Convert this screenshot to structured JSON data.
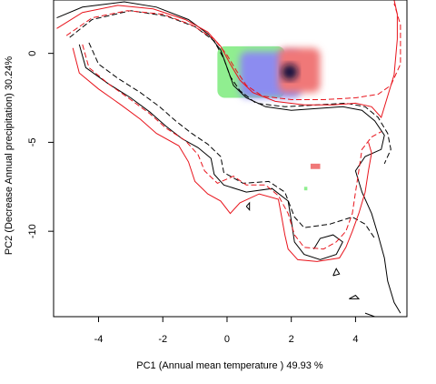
{
  "chart_data": {
    "type": "contour",
    "xlabel": "PC1 (Annual mean temperature ) 49.93 %",
    "ylabel": "PC2 (Decrease Annual precipitation) 30.24%",
    "xlim": [
      -5.4,
      5.6
    ],
    "ylim": [
      -14.8,
      3.0
    ],
    "xticks": [
      -4,
      -2,
      0,
      2,
      4
    ],
    "yticks": [
      0,
      -5,
      -10
    ],
    "xtick_labels": [
      "-4",
      "-2",
      "0",
      "2",
      "4"
    ],
    "ytick_labels": [
      "0",
      "-5",
      "-10"
    ],
    "colors": {
      "species_a": "#000000",
      "species_b": "#e8141c",
      "overlap_dark": "#0a0a3c",
      "only_a": "#8c8cf0",
      "only_b": "#f07878",
      "unfilling": "#90ee90"
    },
    "series": [
      {
        "name": "",
        "color": "#000000",
        "style": "solid",
        "points": [
          [
            -5.3,
            2.0
          ],
          [
            -4.5,
            2.6
          ],
          [
            -3.2,
            2.9
          ],
          [
            -2.2,
            2.6
          ],
          [
            -1.2,
            1.9
          ],
          [
            -0.6,
            1.1
          ],
          [
            -0.2,
            0.2
          ],
          [
            0.0,
            -0.8
          ],
          [
            0.2,
            -1.8
          ],
          [
            0.6,
            -2.5
          ],
          [
            1.2,
            -3.0
          ],
          [
            2.0,
            -3.2
          ],
          [
            2.8,
            -3.1
          ],
          [
            3.6,
            -3.0
          ],
          [
            4.2,
            -3.2
          ],
          [
            4.6,
            -3.8
          ],
          [
            4.9,
            -4.6
          ],
          [
            4.8,
            -5.4
          ],
          [
            4.3,
            -5.8
          ],
          [
            4.0,
            -6.6
          ],
          [
            4.2,
            -7.8
          ],
          [
            4.5,
            -9.0
          ],
          [
            4.7,
            -10.2
          ],
          [
            4.9,
            -11.5
          ],
          [
            5.0,
            -12.8
          ],
          [
            5.2,
            -14.0
          ],
          [
            5.4,
            -14.6
          ]
        ]
      },
      {
        "name": "",
        "color": "#000000",
        "style": "solid",
        "points": [
          [
            -4.6,
            0.5
          ],
          [
            -4.4,
            -0.8
          ],
          [
            -3.7,
            -1.7
          ],
          [
            -3.0,
            -2.5
          ],
          [
            -2.4,
            -3.3
          ],
          [
            -1.9,
            -4.1
          ],
          [
            -1.4,
            -4.8
          ],
          [
            -0.9,
            -5.3
          ],
          [
            -0.5,
            -5.9
          ],
          [
            -0.4,
            -6.8
          ],
          [
            -0.1,
            -7.4
          ],
          [
            0.6,
            -7.8
          ],
          [
            1.4,
            -7.6
          ],
          [
            1.9,
            -8.3
          ],
          [
            2.0,
            -9.4
          ],
          [
            2.1,
            -10.6
          ],
          [
            2.4,
            -11.3
          ],
          [
            2.9,
            -11.6
          ],
          [
            3.4,
            -11.3
          ],
          [
            3.6,
            -10.6
          ],
          [
            3.3,
            -10.2
          ],
          [
            2.9,
            -10.4
          ],
          [
            2.7,
            -11.0
          ]
        ]
      },
      {
        "name": "",
        "color": "#000000",
        "style": "dashed",
        "points": [
          [
            -4.9,
            0.9
          ],
          [
            -4.2,
            1.9
          ],
          [
            -3.0,
            2.4
          ],
          [
            -1.9,
            2.1
          ],
          [
            -1.0,
            1.5
          ],
          [
            -0.4,
            0.7
          ],
          [
            -0.1,
            -0.3
          ],
          [
            0.1,
            -1.3
          ],
          [
            0.4,
            -2.1
          ],
          [
            0.9,
            -2.8
          ],
          [
            1.8,
            -3.0
          ],
          [
            2.8,
            -2.9
          ],
          [
            3.7,
            -2.8
          ],
          [
            4.3,
            -3.0
          ],
          [
            4.7,
            -3.6
          ],
          [
            5.0,
            -4.5
          ],
          [
            5.1,
            -5.4
          ],
          [
            4.9,
            -6.2
          ]
        ]
      },
      {
        "name": "",
        "color": "#000000",
        "style": "dashed",
        "points": [
          [
            -4.3,
            0.6
          ],
          [
            -4.0,
            -0.6
          ],
          [
            -3.4,
            -1.4
          ],
          [
            -2.7,
            -2.2
          ],
          [
            -2.1,
            -3.0
          ],
          [
            -1.6,
            -3.8
          ],
          [
            -1.1,
            -4.5
          ],
          [
            -0.6,
            -5.1
          ],
          [
            -0.2,
            -5.8
          ],
          [
            -0.1,
            -6.7
          ],
          [
            0.5,
            -7.3
          ],
          [
            1.3,
            -7.2
          ],
          [
            1.8,
            -7.8
          ],
          [
            2.1,
            -9.2
          ],
          [
            2.4,
            -9.8
          ],
          [
            3.2,
            -9.6
          ],
          [
            3.9,
            -9.2
          ],
          [
            4.3,
            -9.6
          ],
          [
            4.6,
            -10.4
          ]
        ]
      },
      {
        "name": "",
        "color": "#e8141c",
        "style": "solid",
        "points": [
          [
            -5.3,
            1.4
          ],
          [
            -4.5,
            2.3
          ],
          [
            -3.4,
            2.7
          ],
          [
            -2.3,
            2.5
          ],
          [
            -1.3,
            1.9
          ],
          [
            -0.6,
            1.2
          ],
          [
            -0.2,
            0.4
          ],
          [
            0.1,
            -0.6
          ],
          [
            0.4,
            -1.5
          ],
          [
            0.8,
            -2.2
          ],
          [
            1.5,
            -2.7
          ],
          [
            2.4,
            -2.9
          ],
          [
            3.3,
            -2.9
          ],
          [
            4.0,
            -2.8
          ],
          [
            4.5,
            -3.0
          ],
          [
            4.8,
            -3.6
          ],
          [
            5.2,
            -1.2
          ],
          [
            5.3,
            0.8
          ],
          [
            5.3,
            2.2
          ],
          [
            5.2,
            3.0
          ]
        ]
      },
      {
        "name": "",
        "color": "#e8141c",
        "style": "solid",
        "points": [
          [
            -4.8,
            0.3
          ],
          [
            -4.6,
            -1.1
          ],
          [
            -4.0,
            -2.0
          ],
          [
            -3.3,
            -2.9
          ],
          [
            -2.7,
            -3.7
          ],
          [
            -2.2,
            -4.5
          ],
          [
            -1.5,
            -5.2
          ],
          [
            -1.2,
            -6.1
          ],
          [
            -1.0,
            -7.2
          ],
          [
            -0.6,
            -7.9
          ],
          [
            -0.2,
            -8.3
          ],
          [
            0.1,
            -9.0
          ],
          [
            0.4,
            -8.4
          ],
          [
            1.0,
            -7.9
          ],
          [
            1.6,
            -8.2
          ],
          [
            1.7,
            -9.2
          ],
          [
            1.8,
            -10.2
          ],
          [
            1.9,
            -11.0
          ],
          [
            2.2,
            -11.6
          ],
          [
            2.8,
            -11.7
          ],
          [
            3.5,
            -11.5
          ],
          [
            3.7,
            -10.9
          ],
          [
            3.9,
            -10.0
          ],
          [
            4.1,
            -9.0
          ],
          [
            4.3,
            -7.8
          ],
          [
            4.4,
            -6.6
          ],
          [
            4.5,
            -5.6
          ],
          [
            4.4,
            -5.0
          ]
        ]
      },
      {
        "name": "",
        "color": "#e8141c",
        "style": "dashed",
        "points": [
          [
            -5.0,
            1.0
          ],
          [
            -4.2,
            2.0
          ],
          [
            -3.1,
            2.4
          ],
          [
            -2.0,
            2.2
          ],
          [
            -1.1,
            1.6
          ],
          [
            -0.4,
            0.8
          ],
          [
            0.0,
            -0.1
          ],
          [
            0.3,
            -1.0
          ],
          [
            0.6,
            -1.8
          ],
          [
            1.1,
            -2.4
          ],
          [
            2.0,
            -2.6
          ],
          [
            3.0,
            -2.6
          ],
          [
            4.0,
            -2.5
          ],
          [
            4.7,
            -2.3
          ],
          [
            5.1,
            -1.8
          ],
          [
            5.4,
            -0.6
          ],
          [
            5.4,
            1.6
          ],
          [
            5.2,
            2.8
          ]
        ]
      },
      {
        "name": "",
        "color": "#e8141c",
        "style": "dashed",
        "points": [
          [
            -4.5,
            0.5
          ],
          [
            -4.3,
            -0.8
          ],
          [
            -3.7,
            -1.7
          ],
          [
            -3.0,
            -2.6
          ],
          [
            -2.4,
            -3.4
          ],
          [
            -1.9,
            -4.2
          ],
          [
            -1.3,
            -4.9
          ],
          [
            -0.9,
            -5.7
          ],
          [
            -0.7,
            -6.6
          ],
          [
            -0.3,
            -7.3
          ],
          [
            0.2,
            -6.9
          ],
          [
            0.6,
            -7.4
          ],
          [
            1.2,
            -7.4
          ],
          [
            1.6,
            -8.0
          ],
          [
            1.9,
            -9.0
          ],
          [
            2.1,
            -10.2
          ],
          [
            2.4,
            -10.9
          ],
          [
            3.0,
            -11.0
          ],
          [
            3.4,
            -10.6
          ],
          [
            3.7,
            -10.0
          ],
          [
            3.9,
            -9.0
          ],
          [
            4.0,
            -7.8
          ],
          [
            4.1,
            -6.6
          ],
          [
            4.2,
            -5.4
          ],
          [
            4.5,
            -4.7
          ],
          [
            4.8,
            -4.4
          ]
        ]
      }
    ],
    "filled_regions": [
      {
        "name": "",
        "color": "#90ee90",
        "bounds": [
          -0.3,
          1.8,
          -2.5,
          0.4
        ]
      },
      {
        "name": "",
        "color": "#8c8cf0",
        "bounds": [
          0.4,
          2.3,
          -2.5,
          0.1
        ]
      },
      {
        "name": "",
        "color": "#f07878",
        "bounds": [
          1.6,
          2.9,
          -2.2,
          0.3
        ]
      },
      {
        "name": "",
        "color": "#0a0a3c",
        "bounds": [
          1.7,
          2.2,
          -1.5,
          -0.6
        ]
      },
      {
        "name": "",
        "color": "#f07878",
        "bounds": [
          2.6,
          2.9,
          -6.5,
          -6.2
        ]
      },
      {
        "name": "",
        "color": "#90ee90",
        "bounds": [
          2.4,
          2.5,
          -7.7,
          -7.5
        ]
      }
    ],
    "small_features": [
      {
        "color": "#000000",
        "points": [
          [
            0.6,
            -8.6
          ],
          [
            0.7,
            -8.4
          ],
          [
            0.7,
            -8.8
          ],
          [
            0.6,
            -8.6
          ]
        ]
      },
      {
        "color": "#000000",
        "points": [
          [
            3.3,
            -12.5
          ],
          [
            3.4,
            -12.1
          ],
          [
            3.5,
            -12.4
          ],
          [
            3.3,
            -12.5
          ]
        ]
      },
      {
        "color": "#000000",
        "points": [
          [
            3.8,
            -13.8
          ],
          [
            4.0,
            -13.6
          ],
          [
            4.1,
            -13.8
          ],
          [
            3.8,
            -13.8
          ]
        ]
      },
      {
        "color": "#000000",
        "points": [
          [
            4.3,
            -14.6
          ],
          [
            4.6,
            -14.8
          ]
        ]
      }
    ]
  }
}
